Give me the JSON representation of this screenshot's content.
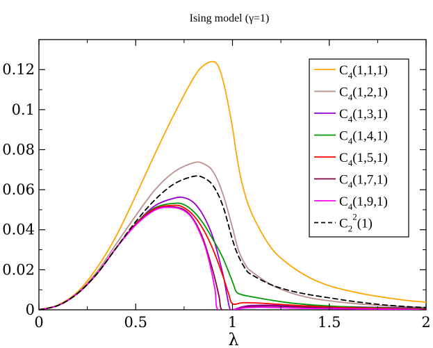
{
  "chart_data": {
    "type": "line",
    "title": "Ising model (γ=1)",
    "xlabel": "λ",
    "ylabel": "",
    "xlim": [
      0,
      2
    ],
    "ylim": [
      0,
      0.135
    ],
    "x_ticks": [
      0,
      0.5,
      1,
      1.5,
      2
    ],
    "x_tick_labels": [
      "0",
      "0.5",
      "1",
      "1.5",
      "2"
    ],
    "y_ticks": [
      0,
      0.02,
      0.04,
      0.06,
      0.08,
      0.1,
      0.12
    ],
    "y_tick_labels": [
      "0",
      "0.02",
      "0.04",
      "0.06",
      "0.08",
      "0.1",
      "0.12"
    ],
    "grid": false,
    "legend_position": "top-right",
    "series": [
      {
        "name": "C4(1,1,1)",
        "base": "C",
        "sub": "4",
        "sup": "",
        "args": "(1,1,1)",
        "color": "#ffa500",
        "dash": "solid",
        "points": [
          [
            0,
            0
          ],
          [
            0.1,
            0.0025
          ],
          [
            0.2,
            0.009
          ],
          [
            0.3,
            0.021
          ],
          [
            0.4,
            0.037
          ],
          [
            0.5,
            0.057
          ],
          [
            0.6,
            0.078
          ],
          [
            0.7,
            0.098
          ],
          [
            0.8,
            0.116
          ],
          [
            0.85,
            0.122
          ],
          [
            0.9,
            0.124
          ],
          [
            0.93,
            0.121
          ],
          [
            0.96,
            0.111
          ],
          [
            1.0,
            0.091
          ],
          [
            1.02,
            0.078
          ],
          [
            1.05,
            0.063
          ],
          [
            1.1,
            0.048
          ],
          [
            1.2,
            0.031
          ],
          [
            1.3,
            0.022
          ],
          [
            1.4,
            0.016
          ],
          [
            1.5,
            0.012
          ],
          [
            1.6,
            0.0095
          ],
          [
            1.7,
            0.0075
          ],
          [
            1.8,
            0.006
          ],
          [
            1.9,
            0.0047
          ],
          [
            2.0,
            0.0038
          ]
        ]
      },
      {
        "name": "C4(1,2,1)",
        "base": "C",
        "sub": "4",
        "sup": "",
        "args": "(1,2,1)",
        "color": "#bc8f8f",
        "dash": "solid",
        "points": [
          [
            0,
            0
          ],
          [
            0.1,
            0.0023
          ],
          [
            0.2,
            0.0085
          ],
          [
            0.3,
            0.019
          ],
          [
            0.4,
            0.033
          ],
          [
            0.5,
            0.047
          ],
          [
            0.6,
            0.06
          ],
          [
            0.7,
            0.069
          ],
          [
            0.8,
            0.0735
          ],
          [
            0.85,
            0.073
          ],
          [
            0.9,
            0.069
          ],
          [
            0.95,
            0.058
          ],
          [
            1.0,
            0.041
          ],
          [
            1.03,
            0.03
          ],
          [
            1.07,
            0.022
          ],
          [
            1.1,
            0.019
          ],
          [
            1.2,
            0.0125
          ],
          [
            1.3,
            0.0085
          ],
          [
            1.4,
            0.006
          ],
          [
            1.5,
            0.0045
          ],
          [
            1.6,
            0.0034
          ],
          [
            1.7,
            0.0026
          ],
          [
            1.8,
            0.002
          ],
          [
            1.9,
            0.0015
          ],
          [
            2.0,
            0.0012
          ]
        ]
      },
      {
        "name": "C4(1,3,1)",
        "base": "C",
        "sub": "4",
        "sup": "",
        "args": "(1,3,1)",
        "color": "#9400d3",
        "dash": "solid",
        "points": [
          [
            0,
            0
          ],
          [
            0.1,
            0.0022
          ],
          [
            0.2,
            0.0082
          ],
          [
            0.3,
            0.018
          ],
          [
            0.4,
            0.031
          ],
          [
            0.5,
            0.043
          ],
          [
            0.6,
            0.052
          ],
          [
            0.7,
            0.0558
          ],
          [
            0.75,
            0.056
          ],
          [
            0.8,
            0.0535
          ],
          [
            0.85,
            0.047
          ],
          [
            0.9,
            0.036
          ],
          [
            0.95,
            0.018
          ],
          [
            0.97,
            0.008
          ],
          [
            0.985,
            0.001
          ],
          [
            1.0,
            0
          ],
          [
            1.05,
            0.0015
          ],
          [
            1.1,
            0.0022
          ],
          [
            1.2,
            0.0023
          ],
          [
            1.3,
            0.0021
          ],
          [
            1.5,
            0.0017
          ],
          [
            1.7,
            0.0013
          ],
          [
            2.0,
            0.0008
          ]
        ]
      },
      {
        "name": "C4(1,4,1)",
        "base": "C",
        "sub": "4",
        "sup": "",
        "args": "(1,4,1)",
        "color": "#009900",
        "dash": "solid",
        "points": [
          [
            0,
            0
          ],
          [
            0.1,
            0.0022
          ],
          [
            0.2,
            0.0082
          ],
          [
            0.3,
            0.018
          ],
          [
            0.4,
            0.031
          ],
          [
            0.5,
            0.043
          ],
          [
            0.6,
            0.051
          ],
          [
            0.7,
            0.0532
          ],
          [
            0.75,
            0.0525
          ],
          [
            0.8,
            0.049
          ],
          [
            0.85,
            0.043
          ],
          [
            0.9,
            0.035
          ],
          [
            0.95,
            0.026
          ],
          [
            1.0,
            0.014
          ],
          [
            1.02,
            0.009
          ],
          [
            1.05,
            0.0075
          ],
          [
            1.1,
            0.0065
          ],
          [
            1.2,
            0.0048
          ],
          [
            1.3,
            0.0034
          ],
          [
            1.4,
            0.0025
          ],
          [
            1.5,
            0.0019
          ],
          [
            1.7,
            0.0011
          ],
          [
            2.0,
            0.0006
          ]
        ]
      },
      {
        "name": "C4(1,5,1)",
        "base": "C",
        "sub": "4",
        "sup": "",
        "args": "(1,5,1)",
        "color": "#ff0000",
        "dash": "solid",
        "points": [
          [
            0,
            0
          ],
          [
            0.1,
            0.0022
          ],
          [
            0.2,
            0.0082
          ],
          [
            0.3,
            0.018
          ],
          [
            0.4,
            0.031
          ],
          [
            0.5,
            0.0428
          ],
          [
            0.6,
            0.0505
          ],
          [
            0.7,
            0.0522
          ],
          [
            0.75,
            0.051
          ],
          [
            0.8,
            0.047
          ],
          [
            0.85,
            0.04
          ],
          [
            0.9,
            0.03
          ],
          [
            0.95,
            0.017
          ],
          [
            0.98,
            0.008
          ],
          [
            1.0,
            0.003
          ],
          [
            1.05,
            0.0035
          ],
          [
            1.1,
            0.0035
          ],
          [
            1.2,
            0.003
          ],
          [
            1.4,
            0.0018
          ],
          [
            1.6,
            0.001
          ],
          [
            2.0,
            0.0004
          ]
        ]
      },
      {
        "name": "C4(1,7,1)",
        "base": "C",
        "sub": "4",
        "sup": "",
        "args": "(1,7,1)",
        "color": "#800040",
        "dash": "solid",
        "points": [
          [
            0,
            0
          ],
          [
            0.1,
            0.0022
          ],
          [
            0.2,
            0.0082
          ],
          [
            0.3,
            0.018
          ],
          [
            0.4,
            0.031
          ],
          [
            0.5,
            0.0425
          ],
          [
            0.6,
            0.05
          ],
          [
            0.68,
            0.0515
          ],
          [
            0.75,
            0.05
          ],
          [
            0.8,
            0.045
          ],
          [
            0.85,
            0.035
          ],
          [
            0.9,
            0.019
          ],
          [
            0.93,
            0.007
          ],
          [
            0.945,
            0
          ],
          [
            1.0,
            0
          ],
          [
            1.05,
            0.0012
          ],
          [
            1.1,
            0.0018
          ],
          [
            1.2,
            0.0019
          ],
          [
            1.4,
            0.0012
          ],
          [
            1.6,
            0.0006
          ],
          [
            2.0,
            0.0002
          ]
        ]
      },
      {
        "name": "C4(1,9,1)",
        "base": "C",
        "sub": "4",
        "sup": "",
        "args": "(1,9,1)",
        "color": "#ff00ff",
        "dash": "solid",
        "points": [
          [
            0,
            0
          ],
          [
            0.1,
            0.0022
          ],
          [
            0.2,
            0.0082
          ],
          [
            0.3,
            0.018
          ],
          [
            0.4,
            0.031
          ],
          [
            0.5,
            0.0423
          ],
          [
            0.6,
            0.0498
          ],
          [
            0.68,
            0.0512
          ],
          [
            0.75,
            0.0495
          ],
          [
            0.8,
            0.0445
          ],
          [
            0.85,
            0.034
          ],
          [
            0.88,
            0.024
          ],
          [
            0.91,
            0.01
          ],
          [
            0.925,
            0
          ],
          [
            1.0,
            0
          ],
          [
            1.05,
            0.0008
          ],
          [
            1.1,
            0.0012
          ],
          [
            1.2,
            0.0012
          ],
          [
            1.4,
            0.0007
          ],
          [
            2.0,
            0.0001
          ]
        ]
      },
      {
        "name": "C2^2(1)",
        "base": "C",
        "sub": "2",
        "sup": "2",
        "args": "(1)",
        "color": "#000000",
        "dash": "dashed",
        "points": [
          [
            0,
            0
          ],
          [
            0.1,
            0.0022
          ],
          [
            0.2,
            0.0082
          ],
          [
            0.3,
            0.018
          ],
          [
            0.4,
            0.031
          ],
          [
            0.5,
            0.044
          ],
          [
            0.6,
            0.055
          ],
          [
            0.7,
            0.063
          ],
          [
            0.8,
            0.0667
          ],
          [
            0.85,
            0.066
          ],
          [
            0.9,
            0.062
          ],
          [
            0.95,
            0.052
          ],
          [
            1.0,
            0.035
          ],
          [
            1.03,
            0.027
          ],
          [
            1.07,
            0.02
          ],
          [
            1.1,
            0.0175
          ],
          [
            1.2,
            0.0125
          ],
          [
            1.3,
            0.0095
          ],
          [
            1.4,
            0.0075
          ],
          [
            1.5,
            0.006
          ],
          [
            1.6,
            0.0045
          ],
          [
            1.7,
            0.0033
          ],
          [
            1.8,
            0.0023
          ],
          [
            1.9,
            0.0016
          ],
          [
            2.0,
            0.0011
          ]
        ]
      }
    ]
  }
}
